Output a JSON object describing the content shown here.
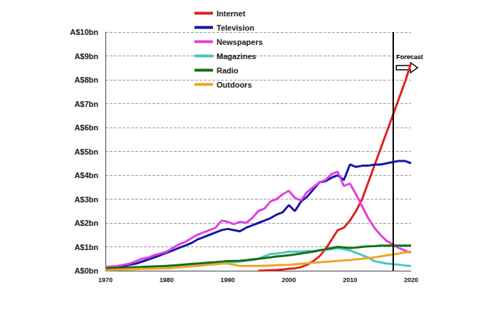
{
  "chart_data": {
    "type": "line",
    "x": [
      1970,
      1971,
      1972,
      1973,
      1974,
      1975,
      1976,
      1977,
      1978,
      1979,
      1980,
      1981,
      1982,
      1983,
      1984,
      1985,
      1986,
      1987,
      1988,
      1989,
      1990,
      1991,
      1992,
      1993,
      1994,
      1995,
      1996,
      1997,
      1998,
      1999,
      2000,
      2001,
      2002,
      2003,
      2004,
      2005,
      2006,
      2007,
      2008,
      2009,
      2010,
      2011,
      2012,
      2013,
      2014,
      2015,
      2016,
      2017,
      2018,
      2019,
      2020
    ],
    "series": [
      {
        "name": "Internet",
        "color": "#e02020",
        "values": [
          null,
          null,
          null,
          null,
          null,
          null,
          null,
          null,
          null,
          null,
          null,
          null,
          null,
          null,
          null,
          null,
          null,
          null,
          null,
          null,
          null,
          null,
          null,
          null,
          null,
          0,
          0.01,
          0.02,
          0.03,
          0.05,
          0.08,
          0.1,
          0.15,
          0.25,
          0.4,
          0.6,
          0.9,
          1.3,
          1.7,
          1.8,
          2.1,
          2.5,
          3.0,
          3.7,
          4.4,
          5.1,
          5.8,
          6.5,
          7.2,
          7.9,
          8.7
        ]
      },
      {
        "name": "Television",
        "color": "#1414a8",
        "values": [
          0.1,
          0.12,
          0.15,
          0.2,
          0.25,
          0.3,
          0.38,
          0.47,
          0.56,
          0.65,
          0.75,
          0.85,
          0.95,
          1.05,
          1.15,
          1.3,
          1.4,
          1.5,
          1.6,
          1.7,
          1.75,
          1.7,
          1.65,
          1.8,
          1.9,
          2.0,
          2.1,
          2.2,
          2.35,
          2.45,
          2.75,
          2.5,
          2.9,
          3.1,
          3.4,
          3.7,
          3.75,
          3.9,
          4.0,
          3.8,
          4.45,
          4.35,
          4.4,
          4.4,
          4.45,
          4.45,
          4.5,
          4.55,
          4.6,
          4.6,
          4.5
        ]
      },
      {
        "name": "Newspapers",
        "color": "#e040e0",
        "values": [
          0.15,
          0.18,
          0.2,
          0.25,
          0.3,
          0.4,
          0.5,
          0.55,
          0.65,
          0.72,
          0.8,
          0.95,
          1.1,
          1.2,
          1.35,
          1.5,
          1.6,
          1.7,
          1.8,
          2.1,
          2.05,
          1.95,
          2.05,
          2.0,
          2.2,
          2.5,
          2.6,
          2.9,
          3.0,
          3.2,
          3.35,
          3.05,
          2.95,
          3.3,
          3.5,
          3.7,
          3.8,
          4.05,
          4.15,
          3.55,
          3.65,
          3.2,
          2.7,
          2.2,
          1.8,
          1.5,
          1.25,
          1.1,
          0.95,
          0.85,
          0.75
        ]
      },
      {
        "name": "Magazines",
        "color": "#48c4c4",
        "values": [
          0.05,
          0.06,
          0.07,
          0.08,
          0.1,
          0.11,
          0.13,
          0.15,
          0.17,
          0.19,
          0.2,
          0.21,
          0.22,
          0.24,
          0.26,
          0.28,
          0.3,
          0.32,
          0.33,
          0.34,
          0.35,
          0.36,
          0.38,
          0.42,
          0.45,
          0.5,
          0.6,
          0.7,
          0.72,
          0.75,
          0.8,
          0.8,
          0.8,
          0.82,
          0.83,
          0.85,
          0.88,
          0.9,
          0.95,
          0.9,
          0.85,
          0.75,
          0.65,
          0.55,
          0.4,
          0.35,
          0.3,
          0.28,
          0.25,
          0.22,
          0.2
        ]
      },
      {
        "name": "Radio",
        "color": "#157015",
        "values": [
          0.1,
          0.11,
          0.12,
          0.13,
          0.14,
          0.15,
          0.16,
          0.17,
          0.18,
          0.19,
          0.2,
          0.22,
          0.24,
          0.26,
          0.28,
          0.3,
          0.32,
          0.34,
          0.36,
          0.38,
          0.4,
          0.41,
          0.42,
          0.44,
          0.47,
          0.5,
          0.53,
          0.56,
          0.6,
          0.62,
          0.65,
          0.68,
          0.72,
          0.76,
          0.8,
          0.85,
          0.9,
          0.95,
          1.0,
          0.98,
          0.95,
          0.97,
          1.0,
          1.02,
          1.03,
          1.05,
          1.05,
          1.05,
          1.05,
          1.05,
          1.05
        ]
      },
      {
        "name": "Outdoors",
        "color": "#f0a428",
        "values": [
          0.02,
          0.03,
          0.04,
          0.05,
          0.06,
          0.07,
          0.08,
          0.08,
          0.09,
          0.1,
          0.1,
          0.12,
          0.14,
          0.16,
          0.18,
          0.2,
          0.22,
          0.25,
          0.27,
          0.3,
          0.3,
          0.25,
          0.2,
          0.2,
          0.2,
          0.2,
          0.21,
          0.22,
          0.23,
          0.24,
          0.25,
          0.27,
          0.29,
          0.31,
          0.33,
          0.35,
          0.37,
          0.39,
          0.41,
          0.43,
          0.45,
          0.48,
          0.5,
          0.53,
          0.56,
          0.6,
          0.64,
          0.68,
          0.72,
          0.76,
          0.8
        ]
      }
    ],
    "xlim": [
      1970,
      2020
    ],
    "xticks": [
      1970,
      1980,
      1990,
      2000,
      2010,
      2020
    ],
    "ylim": [
      0,
      10
    ],
    "yticks": [
      {
        "value": 0,
        "label": "A$0bn"
      },
      {
        "value": 1,
        "label": "A$1bn"
      },
      {
        "value": 2,
        "label": "A$2bn"
      },
      {
        "value": 3,
        "label": "A$3bn"
      },
      {
        "value": 4,
        "label": "A$4bn"
      },
      {
        "value": 5,
        "label": "A$5bn"
      },
      {
        "value": 6,
        "label": "A$6bn"
      },
      {
        "value": 7,
        "label": "A$7bn"
      },
      {
        "value": 8,
        "label": "A$8bn"
      },
      {
        "value": 9,
        "label": "A$9bn"
      },
      {
        "value": 10,
        "label": "A$10bn"
      }
    ],
    "grid": true,
    "legend": "top",
    "annotations": [
      {
        "x": 2017,
        "text": "Forecast"
      }
    ]
  }
}
